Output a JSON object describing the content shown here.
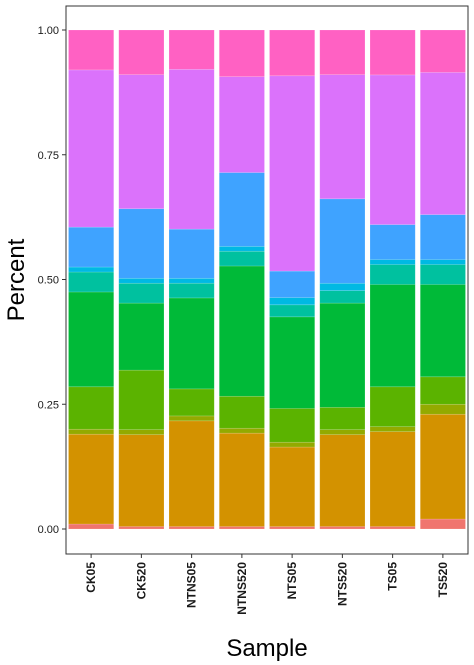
{
  "chart_data": {
    "type": "bar",
    "stacked": true,
    "normalized": true,
    "xlabel": "Sample",
    "ylabel": "Percent",
    "ylim": [
      0,
      1
    ],
    "grid": false,
    "legend": "none",
    "y_ticks": [
      {
        "value": 0,
        "label": "0.00"
      },
      {
        "value": 0.25,
        "label": "0.25"
      },
      {
        "value": 0.5,
        "label": "0.50"
      },
      {
        "value": 0.75,
        "label": "0.75"
      },
      {
        "value": 1,
        "label": "1.00"
      }
    ],
    "categories": [
      "CK05",
      "CK520",
      "NTNS05",
      "NTNS520",
      "NTS05",
      "NTS520",
      "TS05",
      "TS520"
    ],
    "series": [
      {
        "color": "#f0756e",
        "values": [
          0.01,
          0.005,
          0.005,
          0.005,
          0.005,
          0.005,
          0.005,
          0.02
        ]
      },
      {
        "color": "#d39200",
        "values": [
          0.18,
          0.185,
          0.215,
          0.19,
          0.165,
          0.185,
          0.19,
          0.21
        ]
      },
      {
        "color": "#93aa00",
        "values": [
          0.01,
          0.01,
          0.01,
          0.01,
          0.01,
          0.01,
          0.01,
          0.02
        ]
      },
      {
        "color": "#5bb300",
        "values": [
          0.085,
          0.12,
          0.055,
          0.065,
          0.07,
          0.045,
          0.08,
          0.055
        ]
      },
      {
        "color": "#00ba38",
        "values": [
          0.19,
          0.135,
          0.185,
          0.265,
          0.19,
          0.21,
          0.205,
          0.185
        ]
      },
      {
        "color": "#00c19f",
        "values": [
          0.04,
          0.04,
          0.03,
          0.03,
          0.025,
          0.025,
          0.04,
          0.04
        ]
      },
      {
        "color": "#00b9e3",
        "values": [
          0.01,
          0.01,
          0.01,
          0.01,
          0.015,
          0.015,
          0.01,
          0.01
        ]
      },
      {
        "color": "#3fa3ff",
        "values": [
          0.08,
          0.14,
          0.1,
          0.15,
          0.055,
          0.17,
          0.07,
          0.09
        ]
      },
      {
        "color": "#db72fb",
        "values": [
          0.315,
          0.27,
          0.325,
          0.195,
          0.405,
          0.25,
          0.3,
          0.285
        ]
      },
      {
        "color": "#ff61c3",
        "values": [
          0.08,
          0.09,
          0.08,
          0.095,
          0.095,
          0.09,
          0.09,
          0.085
        ]
      }
    ]
  }
}
